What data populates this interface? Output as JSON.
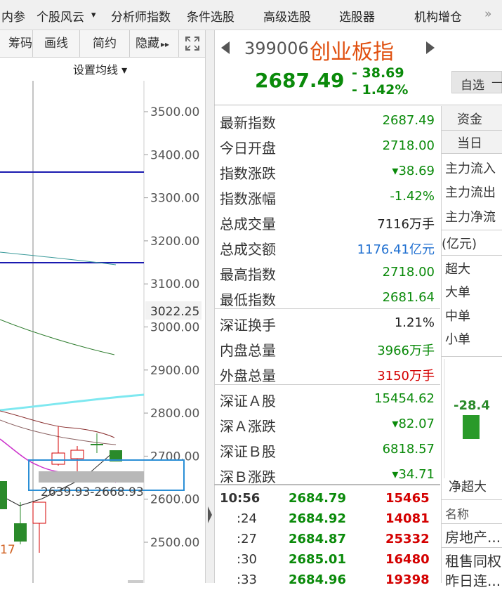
{
  "top_menu": [
    "内参",
    "个股风云",
    "分析师指数",
    "条件选股",
    "高级选股",
    "选股器",
    "机构增仓"
  ],
  "top_menu_more": "»",
  "top_menu_dropdown": "▾",
  "chart_toolbar": [
    "筹码",
    "画线",
    "简约",
    "隐藏"
  ],
  "chart_toolbar_hide_arrow": "▸▸",
  "ma_settings": "设置均线 ▾",
  "chart": {
    "y_ticks": [
      "3500.00",
      "3400.00",
      "3300.00",
      "3200.00",
      "3100.00",
      "3000.00",
      "2900.00",
      "2800.00",
      "2700.00",
      "2600.00",
      "2500.00"
    ],
    "current_price_label": "3022.25",
    "range_label": "2639.93-2668.93",
    "low_label": "17",
    "colors": {
      "up": "#d40000",
      "down": "#2a8a2a",
      "ma_blue": "#1a1ab0",
      "ma_cyan": "#7ee8f0",
      "ma_green": "#2a7a2a",
      "ma_magenta": "#cc33cc",
      "ma_dark": "#8a3030",
      "selection": "#2b8fd6"
    }
  },
  "quote": {
    "code": "399006",
    "name": "创业板指",
    "price": "2687.49",
    "change": "- 38.69",
    "change_pct": "- 1.42%",
    "watch_button": "自选",
    "watch_dash": "—"
  },
  "stats": [
    {
      "label": "最新指数",
      "value": "2687.49",
      "cls": "dn"
    },
    {
      "label": "今日开盘",
      "value": "2718.00",
      "cls": "dn"
    },
    {
      "label": "指数涨跌",
      "value": "▾38.69",
      "cls": "dn"
    },
    {
      "label": "指数涨幅",
      "value": "-1.42%",
      "cls": "dn"
    },
    {
      "label": "总成交量",
      "value": "7116万手",
      "cls": "blk"
    },
    {
      "label": "总成交额",
      "value": "1176.41亿元",
      "cls": "blu"
    },
    {
      "label": "最高指数",
      "value": "2718.00",
      "cls": "dn"
    },
    {
      "label": "最低指数",
      "value": "2681.64",
      "cls": "dn"
    },
    {
      "label": "深证换手",
      "value": "1.21%",
      "cls": "blk"
    },
    {
      "label": "内盘总量",
      "value": "3966万手",
      "cls": "dn"
    },
    {
      "label": "外盘总量",
      "value": "3150万手",
      "cls": "up"
    },
    {
      "label": "深证Ａ股",
      "value": "15454.62",
      "cls": "dn"
    },
    {
      "label": "深Ａ涨跌",
      "value": "▾82.07",
      "cls": "dn"
    },
    {
      "label": "深证Ｂ股",
      "value": "6818.57",
      "cls": "dn"
    },
    {
      "label": "深Ｂ涨跌",
      "value": "▾34.71",
      "cls": "dn"
    }
  ],
  "ticks": [
    {
      "time": "10:56",
      "price": "2684.79",
      "vol": "15465"
    },
    {
      "time": ":24",
      "price": "2684.92",
      "vol": "14081"
    },
    {
      "time": ":27",
      "price": "2684.87",
      "vol": "25332"
    },
    {
      "time": ":30",
      "price": "2685.01",
      "vol": "16480"
    },
    {
      "time": ":33",
      "price": "2684.96",
      "vol": "19398"
    }
  ],
  "fund": {
    "tab1": "资金",
    "tab2": "当日",
    "flows": [
      "主力流入",
      "主力流出",
      "主力净流"
    ],
    "unit": "(亿元)",
    "sizes": [
      "超大",
      "大单",
      "中单",
      "小单"
    ],
    "bar_value": "-28.4",
    "net_label": "净超大",
    "name_header": "名称",
    "names": [
      "房地产...",
      "租售同权",
      "昨日连..."
    ]
  }
}
